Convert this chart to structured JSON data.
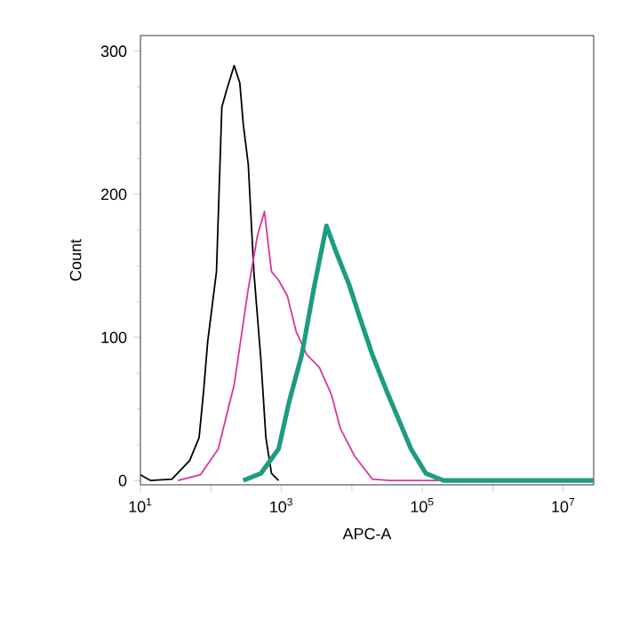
{
  "chart_data": {
    "type": "line",
    "xlabel": "APC-A",
    "ylabel": "Count",
    "log": "x",
    "xlim": [
      10,
      27000000
    ],
    "xticks": [
      {
        "value": 10,
        "label": "10$^{1}$"
      },
      {
        "value": 100,
        "label": null
      },
      {
        "value": 1000,
        "label": "10$^{3}$"
      },
      {
        "value": 10000,
        "label": null
      },
      {
        "value": 100000,
        "label": "10$^{5}$"
      },
      {
        "value": 1000000,
        "label": null
      },
      {
        "value": 10000000,
        "label": "10$^{7}$"
      }
    ],
    "ylim": [
      -3,
      311
    ],
    "yticks": [
      0,
      100,
      200,
      300
    ],
    "series": [
      {
        "color": "#000000",
        "x": [
          10,
          14,
          28,
          50,
          68,
          79,
          90,
          120,
          143,
          170,
          214,
          257,
          288,
          339,
          407,
          513,
          603,
          724,
          912
        ],
        "values": [
          4,
          0,
          1,
          14,
          30,
          63,
          97,
          146,
          261,
          274,
          290,
          278,
          249,
          221,
          146,
          84,
          30,
          5,
          0
        ]
      },
      {
        "color": "#d8369c",
        "x": [
          34,
          71,
          127,
          214,
          339,
          457,
          575,
          724,
          912,
          1216,
          1622,
          2291,
          3467,
          5129,
          6918,
          10965,
          19500,
          34670,
          27000000
        ],
        "values": [
          0,
          4,
          22,
          67,
          134,
          171,
          188,
          146,
          140,
          129,
          104,
          88,
          79,
          60,
          36,
          17,
          1,
          0,
          0
        ]
      },
      {
        "color": "#1c9c80",
        "x": [
          288,
          513,
          912,
          1288,
          1950,
          2884,
          4365,
          6166,
          9120,
          13180,
          19500,
          30900,
          46770,
          69180,
          112200,
          199500,
          27000000
        ],
        "values": [
          0,
          5,
          22,
          55,
          88,
          134,
          178,
          158,
          137,
          113,
          88,
          63,
          42,
          22,
          5,
          0,
          0
        ]
      }
    ]
  }
}
